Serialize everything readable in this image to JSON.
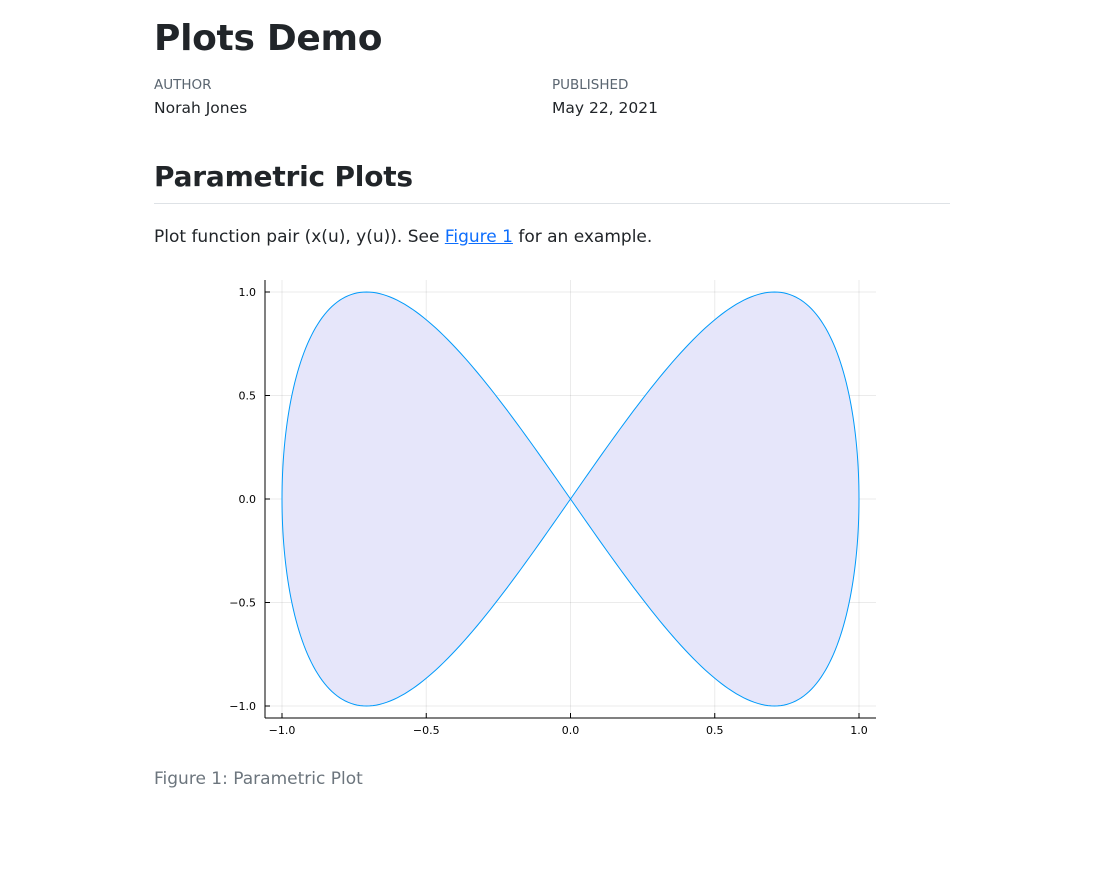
{
  "document": {
    "title": "Plots Demo",
    "author_label": "AUTHOR",
    "author": "Norah Jones",
    "published_label": "PUBLISHED",
    "published": "May 22, 2021"
  },
  "section": {
    "heading": "Parametric Plots",
    "paragraph_before": "Plot function pair (x(u), y(u)). See ",
    "link_text": "Figure 1",
    "paragraph_after": " for an example."
  },
  "figure": {
    "caption": "Figure 1: Parametric Plot"
  },
  "chart_data": {
    "type": "line",
    "parametric": true,
    "description_of_curve": "",
    "series": [
      {
        "fill": true,
        "line_color": "#009AFA",
        "fill_color": "#E6E6FA"
      }
    ],
    "xlim": [
      -1.0,
      1.0
    ],
    "ylim": [
      -1.0,
      1.0
    ],
    "x_ticks": [
      -1.0,
      -0.5,
      0.0,
      0.5,
      1.0
    ],
    "x_tick_labels": [
      "−1.0",
      "−0.5",
      "0.0",
      "0.5",
      "1.0"
    ],
    "y_ticks": [
      -1.0,
      -0.5,
      0.0,
      0.5,
      1.0
    ],
    "y_tick_labels": [
      "−1.0",
      "−0.5",
      "0.0",
      "0.5",
      "1.0"
    ],
    "grid": true,
    "legend": "none"
  }
}
